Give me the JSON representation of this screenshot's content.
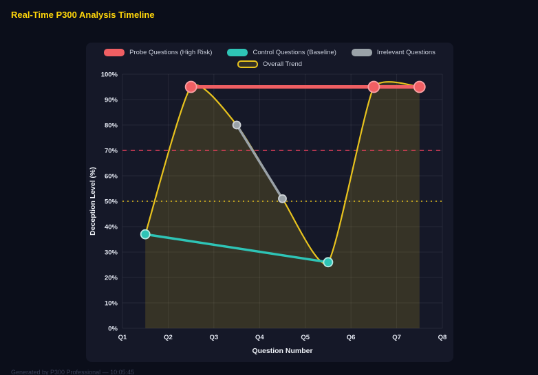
{
  "page": {
    "title": "Real-Time P300 Analysis Timeline",
    "footer": "Generated by P300 Professional — 10:05:45"
  },
  "colors": {
    "accent_yellow": "#ffd60a",
    "background": "#0b0e1a",
    "panel": "#151828"
  },
  "chart_data": {
    "type": "line",
    "title": "Real-Time P300 Analysis Timeline",
    "xlabel": "Question Number",
    "ylabel": "Deception Level (%)",
    "x_ticks": [
      "Q1",
      "Q2",
      "Q3",
      "Q4",
      "Q5",
      "Q6",
      "Q7",
      "Q8"
    ],
    "x_tick_values": [
      1,
      2,
      3,
      4,
      5,
      6,
      7,
      8
    ],
    "xlim": [
      1,
      8
    ],
    "ylim": [
      0,
      100
    ],
    "y_tick_step": 10,
    "y_tick_suffix": "%",
    "grid": true,
    "legend_position": "top",
    "legend": [
      {
        "label": "Probe Questions (High Risk)",
        "color": "#f05f63",
        "style": "solid"
      },
      {
        "label": "Control Questions (Baseline)",
        "color": "#2ec4b6",
        "style": "solid"
      },
      {
        "label": "Irrelevant Questions",
        "color": "#9aa2a8",
        "style": "solid"
      },
      {
        "label": "Overall Trend",
        "color": "#e8c31e",
        "style": "outline"
      }
    ],
    "series": [
      {
        "name": "Probe Questions (High Risk)",
        "color": "#f05f63",
        "point_stroke": "#f9a2a5",
        "width": 5,
        "point_radius": 8,
        "smooth": false,
        "fill": false,
        "points": [
          [
            2.5,
            95
          ],
          [
            6.5,
            95
          ],
          [
            7.5,
            95
          ]
        ]
      },
      {
        "name": "Control Questions (Baseline)",
        "color": "#2ec4b6",
        "point_stroke": "#b8eae4",
        "width": 3.5,
        "point_radius": 6.5,
        "smooth": false,
        "fill": false,
        "points": [
          [
            1.5,
            37
          ],
          [
            5.5,
            26
          ]
        ]
      },
      {
        "name": "Irrelevant Questions",
        "color": "#9aa2a8",
        "point_stroke": "#ced3d7",
        "width": 3.5,
        "point_radius": 5.5,
        "smooth": false,
        "fill": false,
        "points": [
          [
            3.5,
            80
          ],
          [
            4.5,
            51
          ]
        ]
      },
      {
        "name": "Overall Trend",
        "color": "#e8c31e",
        "point_stroke": "#e8c31e",
        "width": 2.2,
        "point_radius": 0,
        "smooth": true,
        "fill": true,
        "fill_color": "rgba(232,195,30,0.16)",
        "points": [
          [
            1.5,
            37
          ],
          [
            2.5,
            95
          ],
          [
            3.5,
            80
          ],
          [
            4.5,
            51
          ],
          [
            5.5,
            26
          ],
          [
            6.5,
            95
          ],
          [
            7.5,
            95
          ]
        ]
      }
    ],
    "thresholds": [
      {
        "name": "high-risk-threshold",
        "value": 70,
        "color": "#e43f5a",
        "dash": [
          6,
          6
        ]
      },
      {
        "name": "baseline-threshold",
        "value": 50,
        "color": "#e8c31e",
        "dash": [
          2,
          5
        ]
      }
    ]
  }
}
